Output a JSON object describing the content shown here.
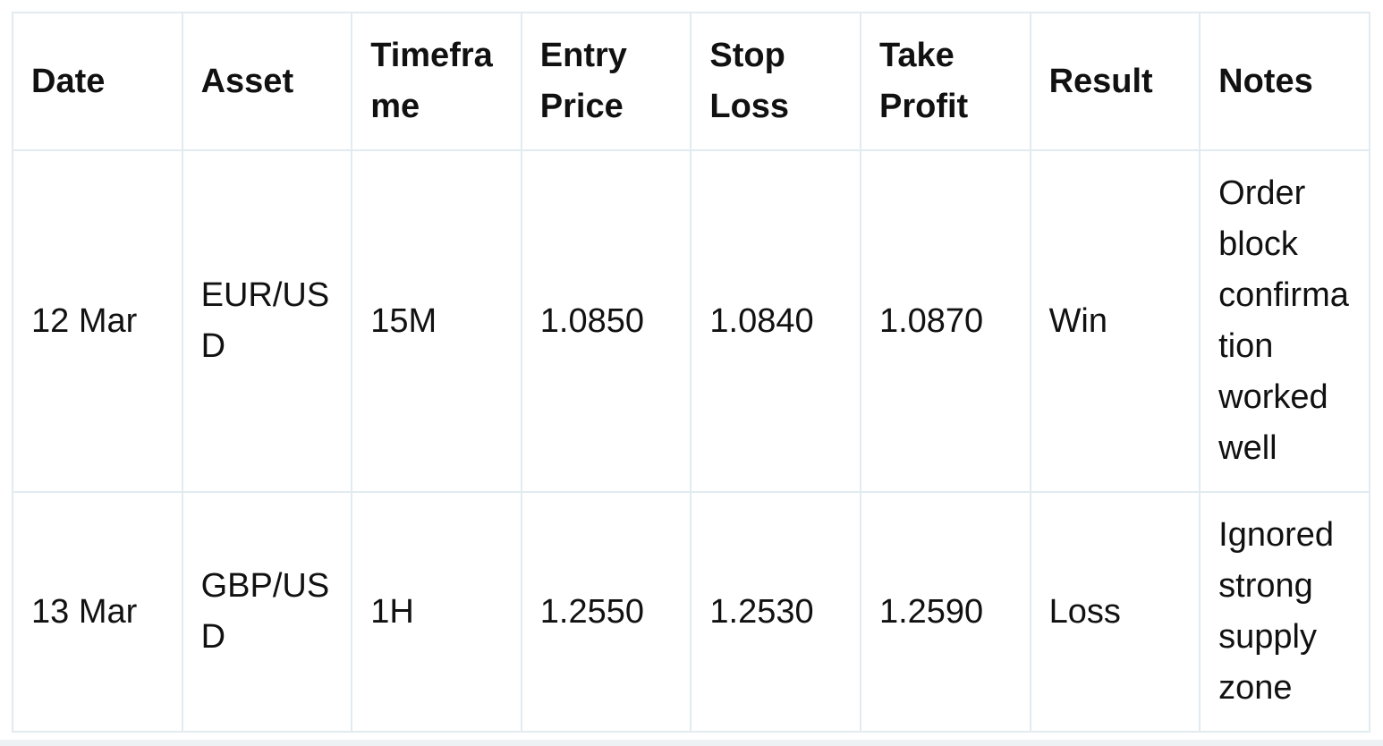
{
  "table": {
    "headers": {
      "date": "Date",
      "asset": "Asset",
      "timeframe": "Timeframe",
      "entry_price": "Entry Price",
      "stop_loss": "Stop Loss",
      "take_profit": "Take Profit",
      "result": "Result",
      "notes": "Notes"
    },
    "rows": [
      {
        "date": "12 Mar",
        "asset": "EUR/USD",
        "timeframe": "15M",
        "entry_price": "1.0850",
        "stop_loss": "1.0840",
        "take_profit": "1.0870",
        "result": "Win",
        "notes": "Order block confirmation worked well"
      },
      {
        "date": "13 Mar",
        "asset": "GBP/USD",
        "timeframe": "1H",
        "entry_price": "1.2550",
        "stop_loss": "1.2530",
        "take_profit": "1.2590",
        "result": "Loss",
        "notes": "Ignored strong supply zone"
      }
    ]
  },
  "colors": {
    "background": "#ffffff",
    "table_border": "#e1ebf0",
    "text": "#111111",
    "bottom_strip": "#edf1f4"
  }
}
